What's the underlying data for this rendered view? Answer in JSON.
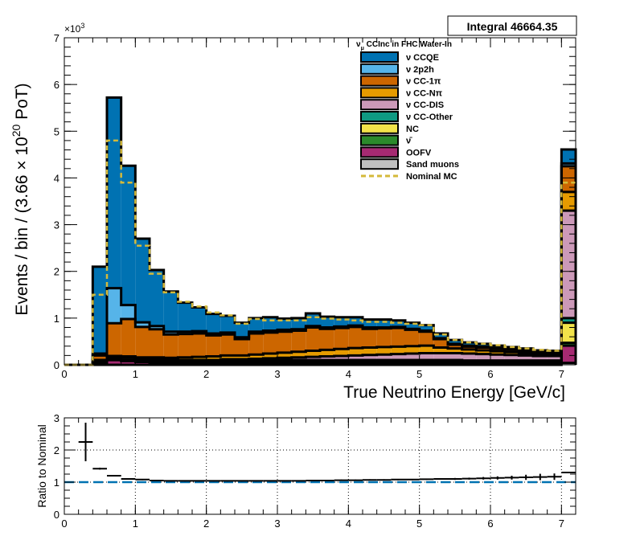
{
  "chart_data": [
    {
      "type": "bar",
      "stacked": true,
      "title": "",
      "xlabel": "True Neutrino Energy [GeV/c]",
      "ylabel": "Events / bin / (3.66  × 10^20  PoT)",
      "ylabel_parts": {
        "main": "Events / bin / (3.66  × 10",
        "exp": "20",
        "tail": " PoT)"
      },
      "y_multiplier": "×10",
      "y_multiplier_exp": "3",
      "integral_label": "Integral 46664.35",
      "legend_header": {
        "nu": "ν",
        "sub": "μ",
        "text": " CCInc in FHC Water-In"
      },
      "xlim": [
        0,
        7.2
      ],
      "ylim": [
        0,
        7
      ],
      "x_ticks": [
        "0",
        "1",
        "2",
        "3",
        "4",
        "5",
        "6",
        "7"
      ],
      "y_ticks": [
        "0",
        "1",
        "2",
        "3",
        "4",
        "5",
        "6",
        "7"
      ],
      "grid": false,
      "legend_position": "top-right",
      "bin_edges": [
        0,
        0.2,
        0.4,
        0.6,
        0.8,
        1.0,
        1.2,
        1.4,
        1.6,
        1.8,
        2.0,
        2.2,
        2.4,
        2.6,
        2.8,
        3.0,
        3.2,
        3.4,
        3.6,
        3.8,
        4.0,
        4.2,
        4.4,
        4.6,
        4.8,
        5.0,
        5.2,
        5.4,
        5.6,
        5.8,
        6.0,
        6.2,
        6.4,
        6.6,
        6.8,
        7.0,
        7.2
      ],
      "series": [
        {
          "name": "Sand muons",
          "legend": "Sand muons",
          "color": "#c0c0c0",
          "values": [
            0,
            0,
            0,
            0,
            0,
            0,
            0,
            0,
            0,
            0,
            0,
            0,
            0,
            0,
            0,
            0,
            0,
            0,
            0,
            0,
            0,
            0,
            0,
            0,
            0,
            0,
            0,
            0,
            0,
            0,
            0,
            0,
            0,
            0,
            0,
            0.04
          ]
        },
        {
          "name": "OOFV",
          "legend": "OOFV",
          "color": "#a62a72",
          "values": [
            0,
            0,
            0.05,
            0.1,
            0.08,
            0.06,
            0.05,
            0.04,
            0.04,
            0.04,
            0.04,
            0.04,
            0.04,
            0.04,
            0.04,
            0.04,
            0.04,
            0.04,
            0.04,
            0.04,
            0.04,
            0.04,
            0.04,
            0.04,
            0.04,
            0.04,
            0.04,
            0.04,
            0.04,
            0.04,
            0.04,
            0.04,
            0.04,
            0.04,
            0.04,
            0.37
          ]
        },
        {
          "name": "nubar",
          "legend": "ν̄",
          "color": "#2b8a2b",
          "values": [
            0,
            0,
            0.02,
            0.03,
            0.03,
            0.03,
            0.03,
            0.02,
            0.02,
            0.02,
            0.02,
            0.02,
            0.02,
            0.02,
            0.02,
            0.02,
            0.02,
            0.02,
            0.02,
            0.02,
            0.02,
            0.02,
            0.02,
            0.02,
            0.02,
            0.02,
            0.02,
            0.02,
            0.02,
            0.02,
            0.02,
            0.02,
            0.02,
            0.02,
            0.02,
            0.06
          ]
        },
        {
          "name": "NC",
          "legend": "NC",
          "color": "#f2e34a",
          "values": [
            0,
            0,
            0.03,
            0.05,
            0.05,
            0.04,
            0.04,
            0.04,
            0.04,
            0.04,
            0.04,
            0.04,
            0.04,
            0.04,
            0.04,
            0.04,
            0.04,
            0.04,
            0.04,
            0.04,
            0.04,
            0.04,
            0.04,
            0.04,
            0.04,
            0.04,
            0.04,
            0.04,
            0.03,
            0.03,
            0.03,
            0.03,
            0.03,
            0.03,
            0.03,
            0.43
          ]
        },
        {
          "name": "CC-Other",
          "legend": "ν CC-Other",
          "color": "#0f9a82",
          "values": [
            0,
            0,
            0,
            0,
            0,
            0,
            0,
            0,
            0,
            0,
            0,
            0,
            0,
            0,
            0,
            0,
            0,
            0,
            0,
            0,
            0,
            0,
            0,
            0,
            0,
            0,
            0,
            0,
            0,
            0,
            0,
            0,
            0,
            0,
            0,
            0.1
          ]
        },
        {
          "name": "CC-DIS",
          "legend": "ν CC-DIS",
          "color": "#cc99b8",
          "values": [
            0,
            0,
            0,
            0,
            0,
            0,
            0,
            0,
            0,
            0,
            0,
            0.02,
            0.02,
            0.03,
            0.04,
            0.05,
            0.06,
            0.07,
            0.08,
            0.09,
            0.1,
            0.11,
            0.12,
            0.13,
            0.14,
            0.15,
            0.15,
            0.15,
            0.15,
            0.14,
            0.13,
            0.12,
            0.11,
            0.1,
            0.1,
            2.3
          ]
        },
        {
          "name": "CC-Npi",
          "legend": "ν CC-Nπ",
          "color": "#e69b00",
          "values": [
            0,
            0,
            0,
            0.01,
            0.02,
            0.03,
            0.04,
            0.05,
            0.06,
            0.07,
            0.08,
            0.08,
            0.08,
            0.09,
            0.1,
            0.11,
            0.12,
            0.13,
            0.14,
            0.15,
            0.16,
            0.16,
            0.16,
            0.16,
            0.16,
            0.16,
            0.12,
            0.1,
            0.09,
            0.08,
            0.07,
            0.06,
            0.05,
            0.04,
            0.04,
            0.4
          ]
        },
        {
          "name": "CC-1pi",
          "legend": "ν CC-1π",
          "color": "#cc6600",
          "values": [
            0,
            0,
            0.1,
            0.7,
            0.8,
            0.65,
            0.6,
            0.5,
            0.5,
            0.5,
            0.45,
            0.45,
            0.35,
            0.45,
            0.45,
            0.45,
            0.45,
            0.5,
            0.45,
            0.45,
            0.45,
            0.4,
            0.4,
            0.4,
            0.35,
            0.3,
            0.18,
            0.08,
            0.06,
            0.06,
            0.05,
            0.05,
            0.04,
            0.03,
            0.03,
            0.55
          ]
        },
        {
          "name": "2p2h",
          "legend": "ν 2p2h",
          "color": "#56b4e9",
          "values": [
            0,
            0,
            0.04,
            0.75,
            0.3,
            0.1,
            0.07,
            0.06,
            0.05,
            0.05,
            0.04,
            0.04,
            0.04,
            0.04,
            0.04,
            0.04,
            0.03,
            0.03,
            0.03,
            0.03,
            0.03,
            0.03,
            0.02,
            0.02,
            0.02,
            0.02,
            0.02,
            0.02,
            0.02,
            0.02,
            0.02,
            0.02,
            0.02,
            0.01,
            0.01,
            0.06
          ]
        },
        {
          "name": "CCQE",
          "legend": "ν CCQE",
          "color": "#0072b2",
          "values": [
            0,
            0,
            1.86,
            4.08,
            2.98,
            1.79,
            1.2,
            0.86,
            0.62,
            0.51,
            0.42,
            0.36,
            0.31,
            0.29,
            0.29,
            0.24,
            0.24,
            0.27,
            0.23,
            0.2,
            0.18,
            0.17,
            0.17,
            0.14,
            0.13,
            0.12,
            0.1,
            0.08,
            0.07,
            0.06,
            0.05,
            0.04,
            0.04,
            0.04,
            0.03,
            0.3
          ]
        }
      ],
      "nominal_mc": {
        "name": "Nominal MC",
        "legend": "Nominal MC",
        "color": "#d4b93a",
        "values": [
          0,
          0,
          1.5,
          4.8,
          3.9,
          2.55,
          1.95,
          1.55,
          1.35,
          1.25,
          1.12,
          1.06,
          0.88,
          0.98,
          0.95,
          0.95,
          0.95,
          1.02,
          0.99,
          0.97,
          0.95,
          0.92,
          0.92,
          0.9,
          0.88,
          0.85,
          0.65,
          0.53,
          0.48,
          0.45,
          0.42,
          0.38,
          0.35,
          0.32,
          0.3,
          3.9
        ]
      }
    },
    {
      "type": "scatter",
      "title": "",
      "xlabel": "",
      "ylabel": "Ratio to Nominal",
      "xlim": [
        0,
        7.2
      ],
      "ylim": [
        0,
        3
      ],
      "x_ticks": [
        "0",
        "1",
        "2",
        "3",
        "4",
        "5",
        "6",
        "7"
      ],
      "y_ticks": [
        "0",
        "1",
        "2",
        "3"
      ],
      "grid": true,
      "reference_line": {
        "y": 1,
        "color": "#0072b2",
        "style": "dashed"
      },
      "points": {
        "x": [
          0.3,
          0.5,
          0.7,
          0.9,
          1.1,
          1.3,
          1.5,
          1.7,
          1.9,
          2.1,
          2.3,
          2.5,
          2.7,
          2.9,
          3.1,
          3.3,
          3.5,
          3.7,
          3.9,
          4.1,
          4.3,
          4.5,
          4.7,
          4.9,
          5.1,
          5.3,
          5.5,
          5.7,
          5.9,
          6.1,
          6.3,
          6.5,
          6.7,
          6.9,
          7.1
        ],
        "y": [
          2.25,
          1.42,
          1.2,
          1.1,
          1.08,
          1.05,
          1.04,
          1.04,
          1.04,
          1.04,
          1.04,
          1.04,
          1.04,
          1.04,
          1.04,
          1.04,
          1.05,
          1.05,
          1.06,
          1.06,
          1.07,
          1.07,
          1.08,
          1.08,
          1.09,
          1.1,
          1.1,
          1.11,
          1.12,
          1.13,
          1.14,
          1.15,
          1.16,
          1.17,
          1.3
        ],
        "yerr": [
          0.6,
          0.03,
          0.02,
          0.02,
          0.02,
          0.02,
          0.02,
          0.02,
          0.02,
          0.02,
          0.02,
          0.02,
          0.02,
          0.02,
          0.02,
          0.02,
          0.02,
          0.02,
          0.02,
          0.02,
          0.02,
          0.02,
          0.02,
          0.02,
          0.02,
          0.02,
          0.03,
          0.03,
          0.04,
          0.05,
          0.06,
          0.08,
          0.1,
          0.1,
          0.02
        ],
        "xerr": 0.1
      }
    }
  ]
}
